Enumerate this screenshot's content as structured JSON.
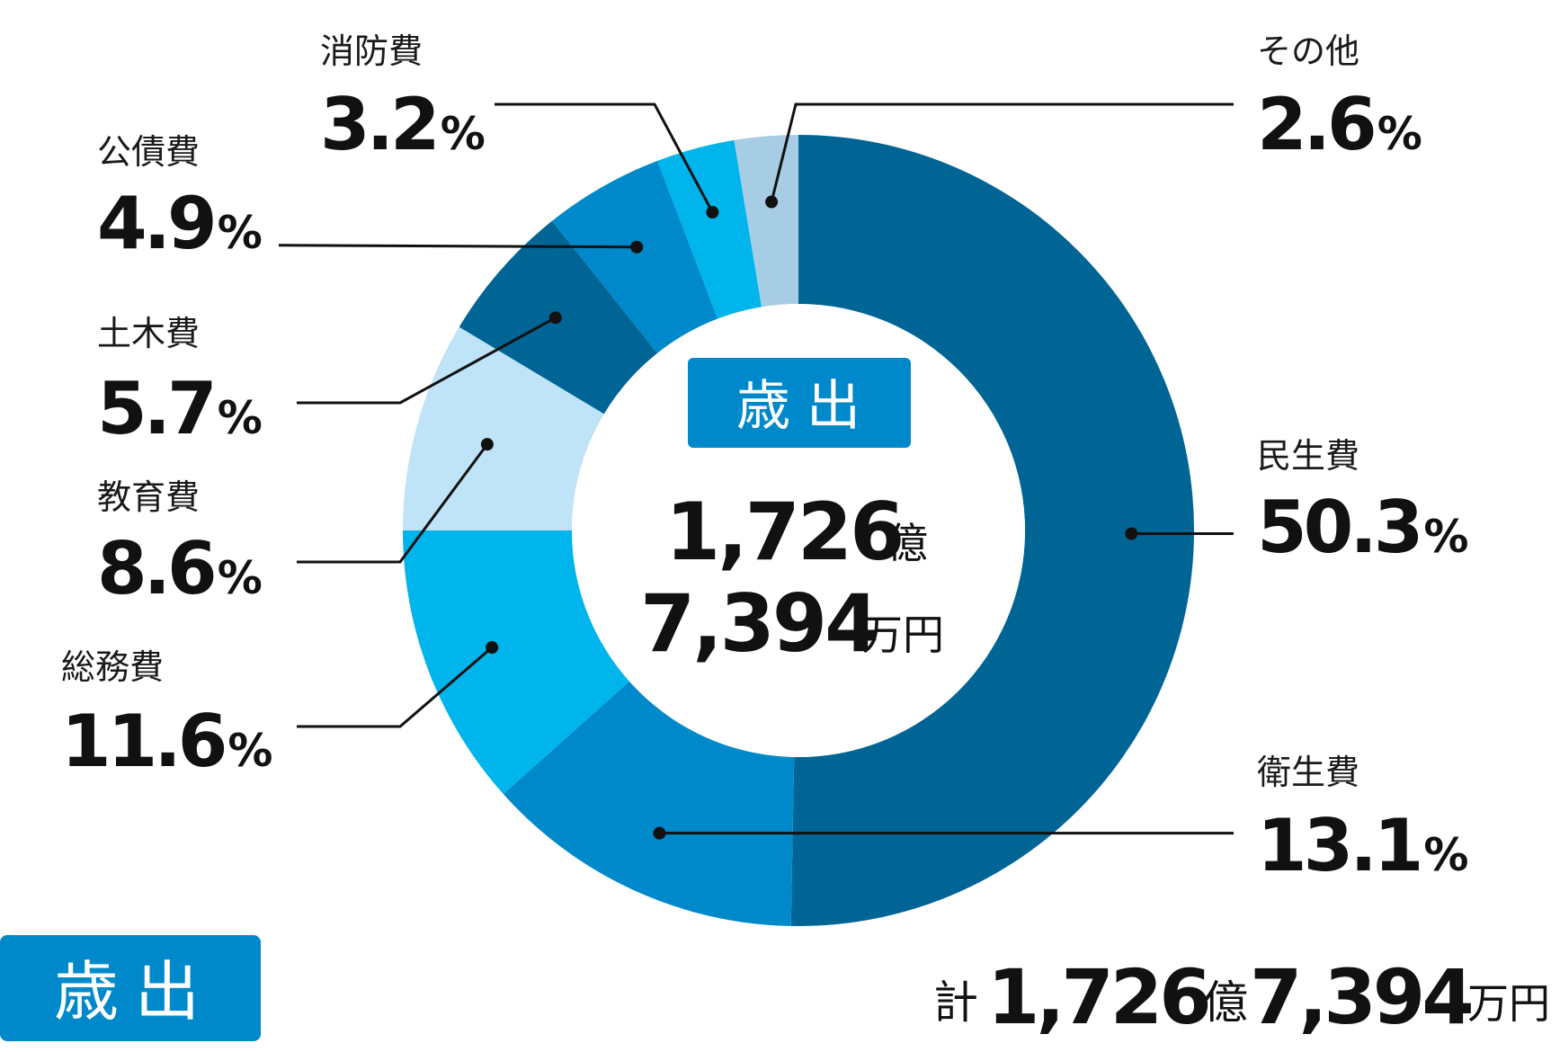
{
  "chart_data": {
    "type": "pie",
    "donut": true,
    "slices": [
      {
        "label": "民生費",
        "value": 50.3,
        "display": "50.3",
        "color": "#006595"
      },
      {
        "label": "衛生費",
        "value": 13.1,
        "display": "13.1",
        "color": "#0089ca"
      },
      {
        "label": "総務費",
        "value": 11.6,
        "display": "11.6",
        "color": "#00b4ec"
      },
      {
        "label": "教育費",
        "value": 8.6,
        "display": "8.6",
        "color": "#bfe3f7"
      },
      {
        "label": "土木費",
        "value": 5.7,
        "display": "5.7",
        "color": "#006595"
      },
      {
        "label": "公債費",
        "value": 4.9,
        "display": "4.9",
        "color": "#0089ca"
      },
      {
        "label": "消防費",
        "value": 3.2,
        "display": "3.2",
        "color": "#00b4ec"
      },
      {
        "label": "その他",
        "value": 2.6,
        "display": "2.6",
        "color": "#a6cde3"
      }
    ],
    "percent_sign": "%",
    "center": {
      "badge": "歳出",
      "line1_number": "1,726",
      "line1_unit": "億",
      "line2_number": "7,394",
      "line2_unit": "万円"
    }
  },
  "footer": {
    "badge": "歳出",
    "total_prefix": "計",
    "total_number1": "1,726",
    "total_unit1": "億",
    "total_number2": "7,394",
    "total_unit2": "万円"
  },
  "colors": {
    "badge": "#0089ca",
    "leader": "#111111"
  }
}
